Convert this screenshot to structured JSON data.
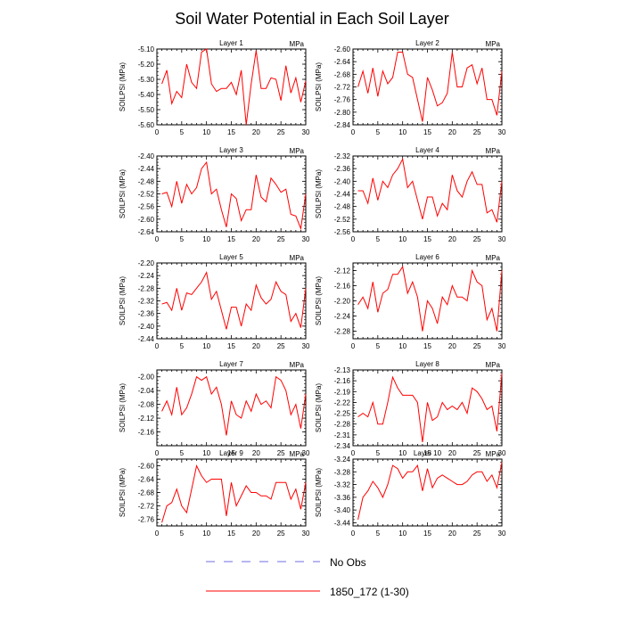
{
  "figure": {
    "title": "Soil Water Potential in Each Soil Layer"
  },
  "colors": {
    "model_line": "#ff0000",
    "obs_line": "#6f6fe0",
    "axis": "#000000"
  },
  "legend": {
    "obs_label": "No Obs",
    "model_label": "1850_172 (1-30)"
  },
  "chart_data": [
    {
      "type": "line",
      "title": "Layer 1",
      "unit": "MPa",
      "ylabel": "SOILPSI (MPa)",
      "xlim": [
        0,
        30
      ],
      "xticks": [
        0,
        5,
        10,
        15,
        20,
        25,
        30
      ],
      "ylim": [
        -5.6,
        -5.1
      ],
      "yticks": [
        -5.6,
        -5.5,
        -5.4,
        -5.3,
        -5.2,
        -5.1
      ],
      "ytick_labels": [
        "-5.60",
        "-5.50",
        "-5.40",
        "-5.30",
        "-5.20",
        "-5.10"
      ],
      "x": [
        1,
        2,
        3,
        4,
        5,
        6,
        7,
        8,
        9,
        10,
        11,
        12,
        13,
        14,
        15,
        16,
        17,
        18,
        19,
        20,
        21,
        22,
        23,
        24,
        25,
        26,
        27,
        28,
        29,
        30
      ],
      "series": [
        {
          "values": [
            -5.33,
            -5.24,
            -5.46,
            -5.38,
            -5.42,
            -5.2,
            -5.32,
            -5.36,
            -5.12,
            -5.1,
            -5.33,
            -5.38,
            -5.36,
            -5.36,
            -5.32,
            -5.4,
            -5.24,
            -5.6,
            -5.33,
            -5.11,
            -5.36,
            -5.36,
            -5.29,
            -5.3,
            -5.44,
            -5.21,
            -5.39,
            -5.29,
            -5.45,
            -5.31
          ]
        }
      ]
    },
    {
      "type": "line",
      "title": "Layer 2",
      "unit": "MPa",
      "ylabel": "SOILPSI (MPa)",
      "xlim": [
        0,
        30
      ],
      "xticks": [
        0,
        5,
        10,
        15,
        20,
        25,
        30
      ],
      "ylim": [
        -2.84,
        -2.6
      ],
      "yticks": [
        -2.84,
        -2.8,
        -2.76,
        -2.72,
        -2.68,
        -2.64,
        -2.6
      ],
      "ytick_labels": [
        "-2.84",
        "-2.80",
        "-2.76",
        "-2.72",
        "-2.68",
        "-2.64",
        "-2.60"
      ],
      "x": [
        1,
        2,
        3,
        4,
        5,
        6,
        7,
        8,
        9,
        10,
        11,
        12,
        13,
        14,
        15,
        16,
        17,
        18,
        19,
        20,
        21,
        22,
        23,
        24,
        25,
        26,
        27,
        28,
        29,
        30
      ],
      "series": [
        {
          "values": [
            -2.72,
            -2.67,
            -2.74,
            -2.66,
            -2.75,
            -2.67,
            -2.71,
            -2.69,
            -2.61,
            -2.61,
            -2.68,
            -2.69,
            -2.76,
            -2.83,
            -2.69,
            -2.73,
            -2.78,
            -2.77,
            -2.74,
            -2.61,
            -2.72,
            -2.72,
            -2.66,
            -2.65,
            -2.71,
            -2.66,
            -2.76,
            -2.76,
            -2.81,
            -2.67
          ]
        }
      ]
    },
    {
      "type": "line",
      "title": "Layer 3",
      "unit": "MPa",
      "ylabel": "SOILPSI (MPa)",
      "xlim": [
        0,
        30
      ],
      "xticks": [
        0,
        5,
        10,
        15,
        20,
        25,
        30
      ],
      "ylim": [
        -2.64,
        -2.4
      ],
      "yticks": [
        -2.64,
        -2.6,
        -2.56,
        -2.52,
        -2.48,
        -2.44,
        -2.4
      ],
      "ytick_labels": [
        "-2.64",
        "-2.60",
        "-2.56",
        "-2.52",
        "-2.48",
        "-2.44",
        "-2.40"
      ],
      "x": [
        1,
        2,
        3,
        4,
        5,
        6,
        7,
        8,
        9,
        10,
        11,
        12,
        13,
        14,
        15,
        16,
        17,
        18,
        19,
        20,
        21,
        22,
        23,
        24,
        25,
        26,
        27,
        28,
        29,
        30
      ],
      "series": [
        {
          "values": [
            -2.52,
            -2.515,
            -2.56,
            -2.48,
            -2.55,
            -2.49,
            -2.52,
            -2.5,
            -2.44,
            -2.42,
            -2.52,
            -2.505,
            -2.57,
            -2.625,
            -2.52,
            -2.535,
            -2.605,
            -2.57,
            -2.57,
            -2.46,
            -2.53,
            -2.545,
            -2.47,
            -2.49,
            -2.515,
            -2.505,
            -2.585,
            -2.59,
            -2.63,
            -2.52
          ]
        }
      ]
    },
    {
      "type": "line",
      "title": "Layer 4",
      "unit": "MPa",
      "ylabel": "SOILPSI (MPa)",
      "xlim": [
        0,
        30
      ],
      "xticks": [
        0,
        5,
        10,
        15,
        20,
        25,
        30
      ],
      "ylim": [
        -2.56,
        -2.32
      ],
      "yticks": [
        -2.56,
        -2.52,
        -2.48,
        -2.44,
        -2.4,
        -2.36,
        -2.32
      ],
      "ytick_labels": [
        "-2.56",
        "-2.52",
        "-2.48",
        "-2.44",
        "-2.40",
        "-2.36",
        "-2.32"
      ],
      "x": [
        1,
        2,
        3,
        4,
        5,
        6,
        7,
        8,
        9,
        10,
        11,
        12,
        13,
        14,
        15,
        16,
        17,
        18,
        19,
        20,
        21,
        22,
        23,
        24,
        25,
        26,
        27,
        28,
        29,
        30
      ],
      "series": [
        {
          "values": [
            -2.43,
            -2.43,
            -2.47,
            -2.39,
            -2.46,
            -2.4,
            -2.42,
            -2.38,
            -2.36,
            -2.33,
            -2.42,
            -2.4,
            -2.46,
            -2.52,
            -2.45,
            -2.45,
            -2.51,
            -2.47,
            -2.49,
            -2.38,
            -2.43,
            -2.45,
            -2.4,
            -2.37,
            -2.41,
            -2.41,
            -2.5,
            -2.49,
            -2.53,
            -2.4
          ]
        }
      ]
    },
    {
      "type": "line",
      "title": "Layer 5",
      "unit": "MPa",
      "ylabel": "SOILPSI (MPa)",
      "xlim": [
        0,
        30
      ],
      "xticks": [
        0,
        5,
        10,
        15,
        20,
        25,
        30
      ],
      "ylim": [
        -2.44,
        -2.2
      ],
      "yticks": [
        -2.44,
        -2.4,
        -2.36,
        -2.32,
        -2.28,
        -2.24,
        -2.2
      ],
      "ytick_labels": [
        "-2.44",
        "-2.40",
        "-2.36",
        "-2.32",
        "-2.28",
        "-2.24",
        "-2.20"
      ],
      "x": [
        1,
        2,
        3,
        4,
        5,
        6,
        7,
        8,
        9,
        10,
        11,
        12,
        13,
        14,
        15,
        16,
        17,
        18,
        19,
        20,
        21,
        22,
        23,
        24,
        25,
        26,
        27,
        28,
        29,
        30
      ],
      "series": [
        {
          "values": [
            -2.33,
            -2.325,
            -2.35,
            -2.28,
            -2.35,
            -2.295,
            -2.3,
            -2.28,
            -2.26,
            -2.23,
            -2.315,
            -2.29,
            -2.35,
            -2.41,
            -2.34,
            -2.34,
            -2.4,
            -2.33,
            -2.35,
            -2.27,
            -2.31,
            -2.33,
            -2.315,
            -2.26,
            -2.29,
            -2.3,
            -2.385,
            -2.36,
            -2.405,
            -2.28
          ]
        }
      ]
    },
    {
      "type": "line",
      "title": "Layer 6",
      "unit": "MPa",
      "ylabel": "SOILPSI (MPa)",
      "xlim": [
        0,
        30
      ],
      "xticks": [
        0,
        5,
        10,
        15,
        20,
        25,
        30
      ],
      "ylim": [
        -2.3,
        -2.1
      ],
      "yticks": [
        -2.28,
        -2.24,
        -2.2,
        -2.16,
        -2.12
      ],
      "ytick_labels": [
        "-2.28",
        "-2.24",
        "-2.20",
        "-2.16",
        "-2.12"
      ],
      "x": [
        1,
        2,
        3,
        4,
        5,
        6,
        7,
        8,
        9,
        10,
        11,
        12,
        13,
        14,
        15,
        16,
        17,
        18,
        19,
        20,
        21,
        22,
        23,
        24,
        25,
        26,
        27,
        28,
        29,
        30
      ],
      "series": [
        {
          "values": [
            -2.21,
            -2.19,
            -2.22,
            -2.15,
            -2.23,
            -2.18,
            -2.17,
            -2.13,
            -2.13,
            -2.11,
            -2.18,
            -2.15,
            -2.19,
            -2.28,
            -2.2,
            -2.22,
            -2.26,
            -2.19,
            -2.21,
            -2.16,
            -2.19,
            -2.19,
            -2.2,
            -2.12,
            -2.15,
            -2.16,
            -2.25,
            -2.22,
            -2.28,
            -2.12
          ]
        }
      ]
    },
    {
      "type": "line",
      "title": "Layer 7",
      "unit": "MPa",
      "ylabel": "SOILPSI (MPa)",
      "xlim": [
        0,
        30
      ],
      "xticks": [
        0,
        5,
        10,
        15,
        20,
        25,
        30
      ],
      "ylim": [
        -2.2,
        -1.98
      ],
      "yticks": [
        -2.16,
        -2.12,
        -2.08,
        -2.04,
        -2.0
      ],
      "ytick_labels": [
        "-2.16",
        "-2.12",
        "-2.08",
        "-2.04",
        "-2.00"
      ],
      "x": [
        1,
        2,
        3,
        4,
        5,
        6,
        7,
        8,
        9,
        10,
        11,
        12,
        13,
        14,
        15,
        16,
        17,
        18,
        19,
        20,
        21,
        22,
        23,
        24,
        25,
        26,
        27,
        28,
        29,
        30
      ],
      "series": [
        {
          "values": [
            -2.1,
            -2.07,
            -2.11,
            -2.03,
            -2.11,
            -2.09,
            -2.05,
            -2.0,
            -2.01,
            -2.0,
            -2.05,
            -2.03,
            -2.08,
            -2.17,
            -2.07,
            -2.11,
            -2.12,
            -2.07,
            -2.1,
            -2.05,
            -2.08,
            -2.07,
            -2.09,
            -2.0,
            -2.01,
            -2.04,
            -2.11,
            -2.08,
            -2.15,
            -2.05
          ]
        }
      ]
    },
    {
      "type": "line",
      "title": "Layer 8",
      "unit": "MPa",
      "ylabel": "SOILPSI (MPa)",
      "xlim": [
        0,
        30
      ],
      "xticks": [
        0,
        5,
        10,
        15,
        20,
        25,
        30
      ],
      "ylim": [
        -2.34,
        -2.13
      ],
      "yticks": [
        -2.34,
        -2.31,
        -2.28,
        -2.25,
        -2.22,
        -2.19,
        -2.16,
        -2.13
      ],
      "ytick_labels": [
        "-2.34",
        "-2.31",
        "-2.28",
        "-2.25",
        "-2.22",
        "-2.19",
        "-2.16",
        "-2.13"
      ],
      "x": [
        1,
        2,
        3,
        4,
        5,
        6,
        7,
        8,
        9,
        10,
        11,
        12,
        13,
        14,
        15,
        16,
        17,
        18,
        19,
        20,
        21,
        22,
        23,
        24,
        25,
        26,
        27,
        28,
        29,
        30
      ],
      "series": [
        {
          "values": [
            -2.26,
            -2.25,
            -2.26,
            -2.22,
            -2.28,
            -2.28,
            -2.22,
            -2.15,
            -2.18,
            -2.2,
            -2.2,
            -2.2,
            -2.22,
            -2.33,
            -2.22,
            -2.27,
            -2.26,
            -2.22,
            -2.24,
            -2.23,
            -2.24,
            -2.22,
            -2.25,
            -2.18,
            -2.19,
            -2.21,
            -2.24,
            -2.23,
            -2.3,
            -2.14
          ]
        }
      ]
    },
    {
      "type": "line",
      "title": "Layer 9",
      "unit": "MPa",
      "ylabel": "SOILPSI (MPa)",
      "xlim": [
        0,
        30
      ],
      "xticks": [
        0,
        5,
        10,
        15,
        20,
        25,
        30
      ],
      "ylim": [
        -2.78,
        -2.58
      ],
      "yticks": [
        -2.76,
        -2.72,
        -2.68,
        -2.64,
        -2.6
      ],
      "ytick_labels": [
        "-2.76",
        "-2.72",
        "-2.68",
        "-2.64",
        "-2.60"
      ],
      "x": [
        1,
        2,
        3,
        4,
        5,
        6,
        7,
        8,
        9,
        10,
        11,
        12,
        13,
        14,
        15,
        16,
        17,
        18,
        19,
        20,
        21,
        22,
        23,
        24,
        25,
        26,
        27,
        28,
        29,
        30
      ],
      "series": [
        {
          "values": [
            -2.77,
            -2.72,
            -2.71,
            -2.67,
            -2.72,
            -2.74,
            -2.67,
            -2.6,
            -2.63,
            -2.65,
            -2.64,
            -2.64,
            -2.64,
            -2.75,
            -2.65,
            -2.72,
            -2.69,
            -2.66,
            -2.68,
            -2.68,
            -2.69,
            -2.69,
            -2.7,
            -2.65,
            -2.65,
            -2.65,
            -2.7,
            -2.67,
            -2.73,
            -2.65
          ]
        }
      ]
    },
    {
      "type": "line",
      "title": "Layer 10",
      "unit": "MPa",
      "ylabel": "SOILPSI (MPa)",
      "xlim": [
        0,
        30
      ],
      "xticks": [
        0,
        5,
        10,
        15,
        20,
        25,
        30
      ],
      "ylim": [
        -3.45,
        -3.24
      ],
      "yticks": [
        -3.44,
        -3.4,
        -3.36,
        -3.32,
        -3.28,
        -3.24
      ],
      "ytick_labels": [
        "-3.44",
        "-3.40",
        "-3.36",
        "-3.32",
        "-3.28",
        "-3.24"
      ],
      "x": [
        1,
        2,
        3,
        4,
        5,
        6,
        7,
        8,
        9,
        10,
        11,
        12,
        13,
        14,
        15,
        16,
        17,
        18,
        19,
        20,
        21,
        22,
        23,
        24,
        25,
        26,
        27,
        28,
        29,
        30
      ],
      "series": [
        {
          "values": [
            -3.43,
            -3.36,
            -3.34,
            -3.31,
            -3.33,
            -3.36,
            -3.32,
            -3.26,
            -3.27,
            -3.3,
            -3.28,
            -3.28,
            -3.26,
            -3.34,
            -3.27,
            -3.33,
            -3.3,
            -3.29,
            -3.3,
            -3.31,
            -3.32,
            -3.32,
            -3.31,
            -3.29,
            -3.28,
            -3.28,
            -3.31,
            -3.29,
            -3.33,
            -3.25
          ]
        }
      ]
    }
  ]
}
